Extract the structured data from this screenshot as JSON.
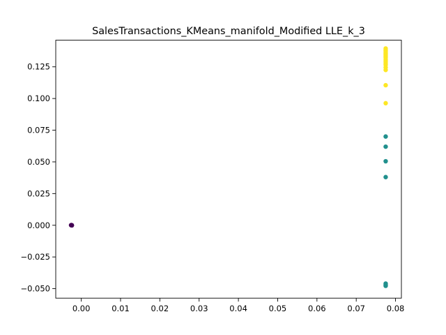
{
  "chart_data": {
    "type": "scatter",
    "title": "SalesTransactions_KMeans_manifold_Modified LLE_k_3",
    "xlabel": "",
    "ylabel": "",
    "xlim": [
      -0.0065,
      0.0815
    ],
    "ylim": [
      -0.0575,
      0.146
    ],
    "xticks": [
      0.0,
      0.01,
      0.02,
      0.03,
      0.04,
      0.05,
      0.06,
      0.07,
      0.08
    ],
    "xtick_labels": [
      "0.00",
      "0.01",
      "0.02",
      "0.03",
      "0.04",
      "0.05",
      "0.06",
      "0.07",
      "0.08"
    ],
    "yticks": [
      -0.05,
      -0.025,
      0.0,
      0.025,
      0.05,
      0.075,
      0.1,
      0.125
    ],
    "ytick_labels": [
      "−0.050",
      "−0.025",
      "0.000",
      "0.025",
      "0.050",
      "0.075",
      "0.100",
      "0.125"
    ],
    "grid": false,
    "series": [
      {
        "name": "cluster 0",
        "color": "#440154",
        "points": [
          [
            -0.0025,
            0.0
          ],
          [
            -0.0026,
            0.0001
          ],
          [
            -0.0024,
            -0.0001
          ],
          [
            -0.0025,
            0.0002
          ],
          [
            -0.0024,
            0.0
          ]
        ]
      },
      {
        "name": "cluster 1",
        "color": "#21908d",
        "points": [
          [
            0.0775,
            0.07
          ],
          [
            0.0775,
            0.062
          ],
          [
            0.0775,
            0.0505
          ],
          [
            0.0775,
            0.038
          ],
          [
            0.0775,
            -0.046
          ],
          [
            0.0775,
            -0.047
          ],
          [
            0.0775,
            -0.0478
          ]
        ]
      },
      {
        "name": "cluster 2",
        "color": "#fde725",
        "points": [
          [
            0.0775,
            0.1395
          ],
          [
            0.0775,
            0.1385
          ],
          [
            0.0775,
            0.1375
          ],
          [
            0.0775,
            0.1365
          ],
          [
            0.0775,
            0.1355
          ],
          [
            0.0775,
            0.1345
          ],
          [
            0.0775,
            0.1335
          ],
          [
            0.0775,
            0.1325
          ],
          [
            0.0775,
            0.131
          ],
          [
            0.0775,
            0.1295
          ],
          [
            0.0775,
            0.128
          ],
          [
            0.0775,
            0.1265
          ],
          [
            0.0775,
            0.1245
          ],
          [
            0.0775,
            0.1225
          ],
          [
            0.0775,
            0.1105
          ],
          [
            0.0775,
            0.0963
          ]
        ]
      }
    ]
  }
}
